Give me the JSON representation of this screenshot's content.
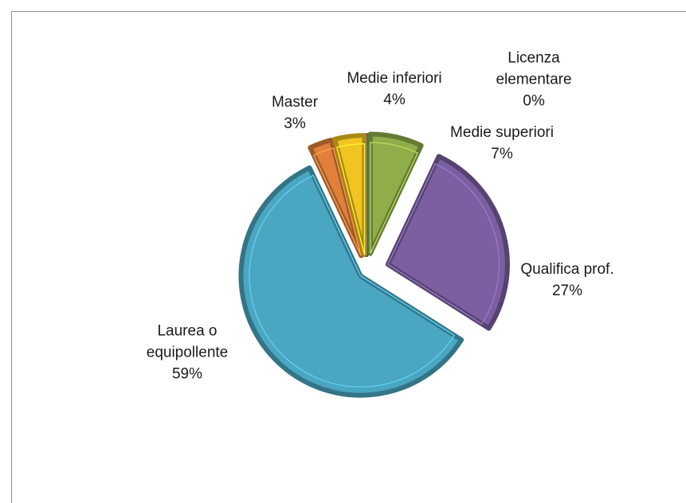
{
  "chart_data": {
    "type": "pie",
    "categories": [
      "Licenza elementare",
      "Medie superiori",
      "Qualifica prof.",
      "Laurea o equipollente",
      "Master",
      "Medie inferiori"
    ],
    "values": [
      0,
      7,
      27,
      59,
      3,
      4
    ],
    "value_labels": [
      "0%",
      "7%",
      "27%",
      "59%",
      "3%",
      "4%"
    ],
    "colors": [
      "#4f81bd",
      "#8fae4a",
      "#7b5fa0",
      "#4aa6c1",
      "#e0803a",
      "#f2c422"
    ]
  }
}
